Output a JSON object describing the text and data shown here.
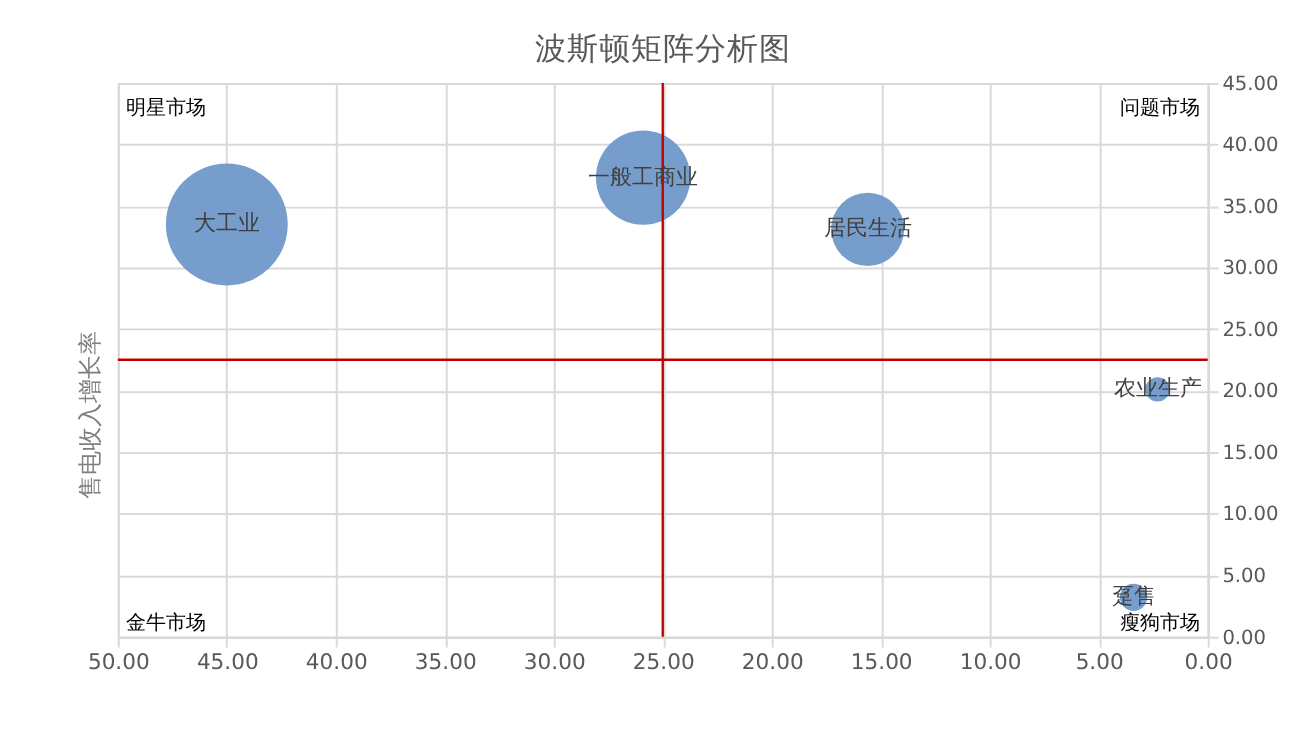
{
  "chart_data": {
    "type": "bubble",
    "title": "波斯顿矩阵分析图",
    "ylabel": "售电收入增长率",
    "x": [
      45.0,
      25.9,
      15.6,
      2.3,
      3.4
    ],
    "values": [
      33.5,
      37.3,
      33.1,
      20.1,
      3.2
    ],
    "sizes": [
      1,
      0.6,
      0.36,
      0.04,
      0.05
    ],
    "color": "#6f98c8",
    "xlim": [
      50,
      0
    ],
    "xticks": [
      {
        "value": 50,
        "label": "50.00"
      },
      {
        "value": 45,
        "label": "45.00"
      },
      {
        "value": 40,
        "label": "40.00"
      },
      {
        "value": 35,
        "label": "35.00"
      },
      {
        "value": 30,
        "label": "30.00"
      },
      {
        "value": 25,
        "label": "25.00"
      },
      {
        "value": 20,
        "label": "20.00"
      },
      {
        "value": 15,
        "label": "15.00"
      },
      {
        "value": 10,
        "label": "10.00"
      },
      {
        "value": 5,
        "label": "5.00"
      },
      {
        "value": 0,
        "label": "0.00"
      }
    ],
    "ylim": [
      0,
      45
    ],
    "yticks": [
      {
        "value": 0,
        "label": "0.00"
      },
      {
        "value": 5,
        "label": "5.00"
      },
      {
        "value": 10,
        "label": "10.00"
      },
      {
        "value": 15,
        "label": "15.00"
      },
      {
        "value": 20,
        "label": "20.00"
      },
      {
        "value": 25,
        "label": "25.00"
      },
      {
        "value": 30,
        "label": "30.00"
      },
      {
        "value": 35,
        "label": "35.00"
      },
      {
        "value": 40,
        "label": "40.00"
      },
      {
        "value": 45,
        "label": "45.00"
      }
    ],
    "grid": true,
    "ref_lines": [
      {
        "axis": "x",
        "value": 25,
        "color": "#c00000"
      },
      {
        "axis": "y",
        "value": 22.5,
        "color": "#c00000"
      }
    ],
    "annotations": [
      {
        "text": "大工业",
        "x": 45.0,
        "y": 33.5
      },
      {
        "text": "一般工商业",
        "x": 25.9,
        "y": 37.3
      },
      {
        "text": "居民生活",
        "x": 15.6,
        "y": 33.1
      },
      {
        "text": "农业生产",
        "x": 2.3,
        "y": 20.1
      },
      {
        "text": "趸售",
        "x": 3.4,
        "y": 3.2
      },
      "明星市场",
      "问题市场",
      "金牛市场",
      "瘦狗市场"
    ]
  }
}
